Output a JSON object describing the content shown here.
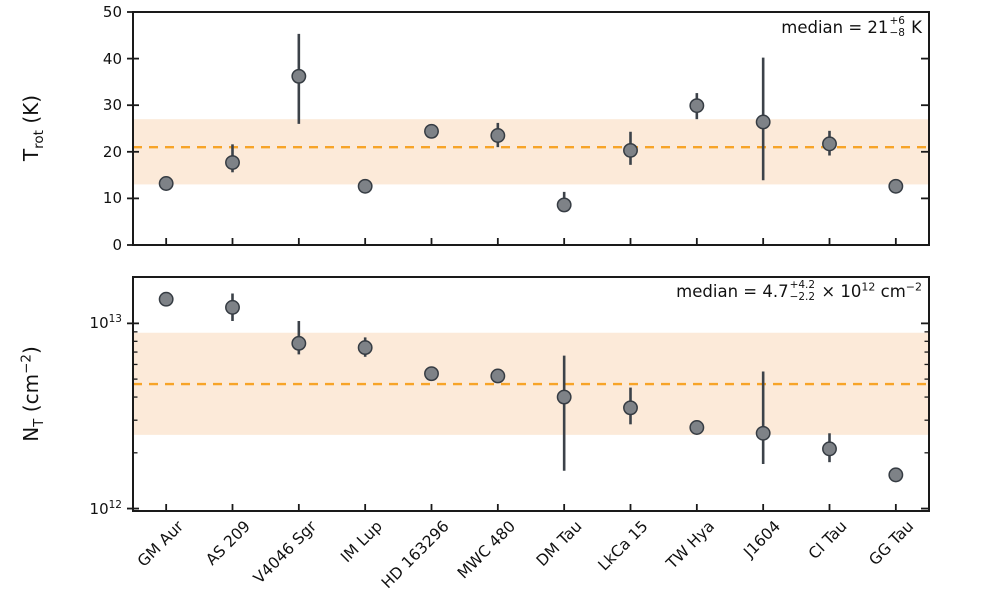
{
  "figure": {
    "bg": "#ffffff"
  },
  "colors": {
    "spine": "#1a1a1a",
    "tick": "#1a1a1a",
    "text": "#111111",
    "marker_fill": "#7e8287",
    "marker_edge": "#363c43",
    "errorbar": "#3c4249",
    "median_line": "#f7a428",
    "band_fill": "#fcead9"
  },
  "categories": [
    "GM Aur",
    "AS 209",
    "V4046 Sgr",
    "IM Lup",
    "HD 163296",
    "MWC 480",
    "DM Tau",
    "LkCa 15",
    "TW Hya",
    "J1604",
    "CI Tau",
    "GG Tau"
  ],
  "chart_data": [
    {
      "type": "scatter",
      "panel": "top",
      "ylabel": "T_rot (K)",
      "ylabel_parts": {
        "base": "T",
        "sub": "rot",
        "rest": " (K)"
      },
      "xlabel": "",
      "yscale": "linear",
      "ylim": [
        0,
        50
      ],
      "yticks": [
        {
          "v": 0,
          "label": "0"
        },
        {
          "v": 10,
          "label": "10"
        },
        {
          "v": 20,
          "label": "20"
        },
        {
          "v": 30,
          "label": "30"
        },
        {
          "v": 40,
          "label": "40"
        },
        {
          "v": 50,
          "label": "50"
        }
      ],
      "median": 21,
      "band": [
        13,
        27
      ],
      "annotation": {
        "text": "median = 21 +6/-8 K",
        "prefix": "median = 21",
        "plus": "+6",
        "minus": "−8",
        "suffix": " K"
      },
      "categories": [
        "GM Aur",
        "AS 209",
        "V4046 Sgr",
        "IM Lup",
        "HD 163296",
        "MWC 480",
        "DM Tau",
        "LkCa 15",
        "TW Hya",
        "J1604",
        "CI Tau",
        "GG Tau"
      ],
      "points": [
        {
          "label": "GM Aur",
          "y": 13.2,
          "lo": 12.6,
          "hi": 13.8
        },
        {
          "label": "AS 209",
          "y": 17.7,
          "lo": 15.6,
          "hi": 21.6
        },
        {
          "label": "V4046 Sgr",
          "y": 36.2,
          "lo": 26.0,
          "hi": 45.3
        },
        {
          "label": "IM Lup",
          "y": 12.6,
          "lo": 12.1,
          "hi": 13.2
        },
        {
          "label": "HD 163296",
          "y": 24.4,
          "lo": 23.8,
          "hi": 25.0
        },
        {
          "label": "MWC 480",
          "y": 23.5,
          "lo": 21.0,
          "hi": 26.2
        },
        {
          "label": "DM Tau",
          "y": 8.6,
          "lo": 7.8,
          "hi": 11.4
        },
        {
          "label": "LkCa 15",
          "y": 20.3,
          "lo": 17.2,
          "hi": 24.3
        },
        {
          "label": "TW Hya",
          "y": 29.9,
          "lo": 27.0,
          "hi": 32.6
        },
        {
          "label": "J1604",
          "y": 26.4,
          "lo": 13.9,
          "hi": 40.2
        },
        {
          "label": "CI Tau",
          "y": 21.7,
          "lo": 19.2,
          "hi": 24.5
        },
        {
          "label": "GG Tau",
          "y": 12.6,
          "lo": 12.1,
          "hi": 13.2
        }
      ]
    },
    {
      "type": "scatter",
      "panel": "bottom",
      "ylabel": "N_T (cm^-2)",
      "ylabel_parts": {
        "base": "N",
        "sub": "T",
        "rest_pre": " (cm",
        "sup": "−2",
        "rest_post": ")"
      },
      "xlabel": "",
      "yscale": "log",
      "ylim": [
        970000000000.0,
        17800000000000.0
      ],
      "yticks": [
        {
          "v": 1000000000000.0,
          "base": "10",
          "exp": "12"
        },
        {
          "v": 10000000000000.0,
          "base": "10",
          "exp": "13"
        }
      ],
      "median": 4700000000000.0,
      "band": [
        2500000000000.0,
        8900000000000.0
      ],
      "annotation": {
        "text": "median = 4.7 +4.2/-2.2 x 10^12 cm^-2",
        "prefix": "median = 4.7",
        "plus": "+4.2",
        "minus": "−2.2",
        "times": " × 10",
        "exp": "12",
        "unit": " cm",
        "unit_exp": "−2"
      },
      "categories": [
        "GM Aur",
        "AS 209",
        "V4046 Sgr",
        "IM Lup",
        "HD 163296",
        "MWC 480",
        "DM Tau",
        "LkCa 15",
        "TW Hya",
        "J1604",
        "CI Tau",
        "GG Tau"
      ],
      "points": [
        {
          "label": "GM Aur",
          "y": 13500000000000.0,
          "lo": 12700000000000.0,
          "hi": 14400000000000.0
        },
        {
          "label": "AS 209",
          "y": 12200000000000.0,
          "lo": 10300000000000.0,
          "hi": 14500000000000.0
        },
        {
          "label": "V4046 Sgr",
          "y": 7800000000000.0,
          "lo": 6800000000000.0,
          "hi": 10300000000000.0
        },
        {
          "label": "IM Lup",
          "y": 7400000000000.0,
          "lo": 6600000000000.0,
          "hi": 8400000000000.0
        },
        {
          "label": "HD 163296",
          "y": 5350000000000.0,
          "lo": 5050000000000.0,
          "hi": 5700000000000.0
        },
        {
          "label": "MWC 480",
          "y": 5200000000000.0,
          "lo": 4900000000000.0,
          "hi": 5500000000000.0
        },
        {
          "label": "DM Tau",
          "y": 4000000000000.0,
          "lo": 1600000000000.0,
          "hi": 6700000000000.0
        },
        {
          "label": "LkCa 15",
          "y": 3500000000000.0,
          "lo": 2850000000000.0,
          "hi": 4500000000000.0
        },
        {
          "label": "TW Hya",
          "y": 2740000000000.0,
          "lo": 2580000000000.0,
          "hi": 2920000000000.0
        },
        {
          "label": "J1604",
          "y": 2550000000000.0,
          "lo": 1740000000000.0,
          "hi": 5500000000000.0
        },
        {
          "label": "CI Tau",
          "y": 2100000000000.0,
          "lo": 1780000000000.0,
          "hi": 2550000000000.0
        },
        {
          "label": "GG Tau",
          "y": 1520000000000.0,
          "lo": 1430000000000.0,
          "hi": 1630000000000.0
        }
      ]
    }
  ]
}
